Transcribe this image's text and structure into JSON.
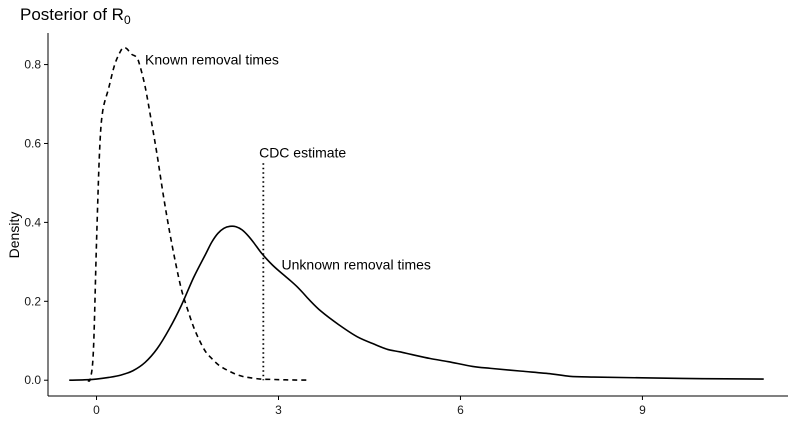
{
  "chart_data": {
    "type": "line",
    "title": {
      "main": "Posterior of R",
      "subscript": "0"
    },
    "xlabel": "",
    "ylabel": "Density",
    "xlim": [
      -0.8,
      11.4
    ],
    "ylim": [
      -0.04,
      0.88
    ],
    "x_ticks": [
      0,
      3,
      6,
      9
    ],
    "y_ticks": [
      0.0,
      0.2,
      0.4,
      0.6,
      0.8
    ],
    "x_tick_labels": [
      "0",
      "3",
      "6",
      "9"
    ],
    "y_tick_labels": [
      "0.0",
      "0.2",
      "0.4",
      "0.6",
      "0.8"
    ],
    "grid": false,
    "legend": "none",
    "series": [
      {
        "name": "Known removal times",
        "style": "dashed",
        "color": "#000000",
        "points": [
          [
            -0.15,
            0.0
          ],
          [
            -0.1,
            0.005
          ],
          [
            -0.05,
            0.08
          ],
          [
            0.0,
            0.35
          ],
          [
            0.05,
            0.58
          ],
          [
            0.1,
            0.68
          ],
          [
            0.2,
            0.74
          ],
          [
            0.3,
            0.8
          ],
          [
            0.4,
            0.835
          ],
          [
            0.45,
            0.843
          ],
          [
            0.5,
            0.84
          ],
          [
            0.58,
            0.826
          ],
          [
            0.65,
            0.82
          ],
          [
            0.7,
            0.805
          ],
          [
            0.8,
            0.745
          ],
          [
            0.9,
            0.66
          ],
          [
            1.0,
            0.57
          ],
          [
            1.1,
            0.47
          ],
          [
            1.2,
            0.38
          ],
          [
            1.3,
            0.3
          ],
          [
            1.4,
            0.23
          ],
          [
            1.5,
            0.18
          ],
          [
            1.6,
            0.135
          ],
          [
            1.7,
            0.1
          ],
          [
            1.8,
            0.072
          ],
          [
            1.9,
            0.055
          ],
          [
            2.0,
            0.04
          ],
          [
            2.1,
            0.03
          ],
          [
            2.2,
            0.022
          ],
          [
            2.3,
            0.015
          ],
          [
            2.4,
            0.01
          ],
          [
            2.5,
            0.007
          ],
          [
            2.7,
            0.003
          ],
          [
            2.9,
            0.002
          ],
          [
            3.1,
            0.001
          ],
          [
            3.3,
            0.0005
          ],
          [
            3.5,
            0.0003
          ]
        ]
      },
      {
        "name": "Unknown removal times",
        "style": "solid",
        "color": "#000000",
        "points": [
          [
            -0.45,
            0.0
          ],
          [
            -0.2,
            0.001
          ],
          [
            0.0,
            0.003
          ],
          [
            0.2,
            0.007
          ],
          [
            0.4,
            0.013
          ],
          [
            0.6,
            0.024
          ],
          [
            0.8,
            0.045
          ],
          [
            1.0,
            0.08
          ],
          [
            1.2,
            0.13
          ],
          [
            1.4,
            0.19
          ],
          [
            1.6,
            0.26
          ],
          [
            1.8,
            0.32
          ],
          [
            1.9,
            0.35
          ],
          [
            2.0,
            0.372
          ],
          [
            2.1,
            0.385
          ],
          [
            2.2,
            0.39
          ],
          [
            2.3,
            0.389
          ],
          [
            2.4,
            0.381
          ],
          [
            2.5,
            0.366
          ],
          [
            2.6,
            0.347
          ],
          [
            2.7,
            0.326
          ],
          [
            2.8,
            0.308
          ],
          [
            2.9,
            0.292
          ],
          [
            3.0,
            0.278
          ],
          [
            3.1,
            0.265
          ],
          [
            3.2,
            0.252
          ],
          [
            3.3,
            0.238
          ],
          [
            3.4,
            0.222
          ],
          [
            3.5,
            0.205
          ],
          [
            3.7,
            0.175
          ],
          [
            4.0,
            0.14
          ],
          [
            4.3,
            0.11
          ],
          [
            4.6,
            0.09
          ],
          [
            4.8,
            0.078
          ],
          [
            5.0,
            0.072
          ],
          [
            5.2,
            0.065
          ],
          [
            5.5,
            0.055
          ],
          [
            5.8,
            0.047
          ],
          [
            6.2,
            0.035
          ],
          [
            6.5,
            0.03
          ],
          [
            7.0,
            0.023
          ],
          [
            7.5,
            0.016
          ],
          [
            7.8,
            0.01
          ],
          [
            8.2,
            0.008
          ],
          [
            9.0,
            0.006
          ],
          [
            10.0,
            0.004
          ],
          [
            11.0,
            0.003
          ]
        ]
      }
    ],
    "reference_line": {
      "label": "CDC estimate",
      "x": 2.75,
      "y_top": 0.55,
      "style": "dotted"
    },
    "annotations": [
      {
        "text": "Known removal times",
        "x": 0.8,
        "y": 0.8
      },
      {
        "text": "CDC estimate",
        "x": 2.68,
        "y": 0.565
      },
      {
        "text": "Unknown removal times",
        "x": 3.05,
        "y": 0.28
      }
    ]
  }
}
